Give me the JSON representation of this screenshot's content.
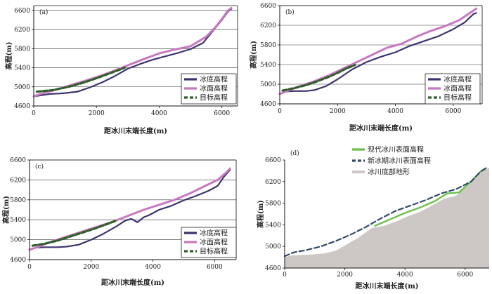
{
  "colors": {
    "bed": "#3d3470",
    "surface": "#c878c0",
    "target": "#2f5e2a",
    "modern": "#6cc04a",
    "lia": "#334a6a",
    "terrain": "#cdc8c6",
    "grid": "#333333"
  },
  "chart_data": [
    {
      "id": "a",
      "type": "line",
      "panel_label": "(a)",
      "xlabel": "距冰川末端长度(m)",
      "ylabel": "高程(m)",
      "xlim": [
        0,
        6500
      ],
      "ylim": [
        4600,
        6700
      ],
      "xticks": [
        0,
        2000,
        4000,
        6000
      ],
      "yticks": [
        4600,
        5000,
        5400,
        5800,
        6200,
        6600
      ],
      "grid": true,
      "legend_position": "bottom-right",
      "legend": [
        "冰底高程",
        "冰面高程",
        "目标高程"
      ],
      "series": [
        {
          "name": "冰底高程",
          "key": "bed",
          "x": [
            0,
            200,
            500,
            800,
            1000,
            1400,
            1800,
            2200,
            2600,
            3000,
            3400,
            3800,
            4200,
            4600,
            5000,
            5400,
            5800,
            6000,
            6200,
            6300
          ],
          "y": [
            4800,
            4820,
            4850,
            4860,
            4870,
            4900,
            4990,
            5100,
            5230,
            5380,
            5480,
            5570,
            5640,
            5710,
            5790,
            5920,
            6240,
            6400,
            6580,
            6630
          ]
        },
        {
          "name": "冰面高程",
          "key": "surface",
          "x": [
            0,
            300,
            600,
            1000,
            1500,
            2000,
            2500,
            3000,
            3500,
            4000,
            4500,
            5000,
            5500,
            5800,
            6000,
            6200,
            6300
          ],
          "y": [
            4800,
            4870,
            4920,
            5000,
            5100,
            5200,
            5320,
            5450,
            5580,
            5700,
            5780,
            5850,
            6050,
            6250,
            6420,
            6600,
            6650
          ]
        },
        {
          "name": "目标高程",
          "key": "target",
          "x": [
            100,
            600,
            1100,
            1600,
            2000,
            2500,
            2900
          ],
          "y": [
            4900,
            4930,
            5000,
            5090,
            5180,
            5300,
            5400
          ]
        }
      ]
    },
    {
      "id": "b",
      "type": "line",
      "panel_label": "(b)",
      "xlabel": "距冰川末端长度(m)",
      "ylabel": "高程(m)",
      "xlim": [
        0,
        7000
      ],
      "ylim": [
        4600,
        6600
      ],
      "xticks": [
        0,
        2000,
        4000,
        6000
      ],
      "yticks": [
        4600,
        5000,
        5400,
        5800,
        6200,
        6600
      ],
      "grid": true,
      "legend_position": "bottom-right",
      "legend": [
        "冰底高程",
        "冰面高程",
        "目标高程"
      ],
      "series": [
        {
          "name": "冰底高程",
          "key": "bed",
          "x": [
            0,
            200,
            500,
            900,
            1200,
            1600,
            2000,
            2500,
            3000,
            3500,
            4000,
            4500,
            5000,
            5500,
            6000,
            6400,
            6700,
            6800
          ],
          "y": [
            4800,
            4850,
            4860,
            4860,
            4880,
            4960,
            5100,
            5300,
            5450,
            5560,
            5650,
            5780,
            5880,
            5980,
            6120,
            6260,
            6430,
            6450
          ]
        },
        {
          "name": "冰面高程",
          "key": "surface",
          "x": [
            0,
            300,
            700,
            1200,
            1700,
            2200,
            2700,
            3200,
            3700,
            4200,
            4700,
            5200,
            5700,
            6200,
            6600,
            6800
          ],
          "y": [
            4800,
            4870,
            4960,
            5060,
            5180,
            5320,
            5460,
            5600,
            5740,
            5820,
            5960,
            6080,
            6180,
            6300,
            6460,
            6540
          ]
        },
        {
          "name": "目标高程",
          "key": "target",
          "x": [
            100,
            500,
            900,
            1300,
            1700,
            2000,
            2300,
            2600
          ],
          "y": [
            4870,
            4920,
            4980,
            5060,
            5150,
            5230,
            5320,
            5390
          ]
        }
      ]
    },
    {
      "id": "c",
      "type": "line",
      "panel_label": "(c)",
      "xlabel": "距冰川末端长度(m)",
      "ylabel": "高程(m)",
      "xlim": [
        0,
        6700
      ],
      "ylim": [
        4600,
        6600
      ],
      "xticks": [
        0,
        2000,
        4000,
        6000
      ],
      "yticks": [
        4600,
        5000,
        5400,
        5800,
        6200,
        6600
      ],
      "grid": true,
      "legend_position": "bottom-right",
      "legend": [
        "冰底高程",
        "冰面高程",
        "目标高程"
      ],
      "series": [
        {
          "name": "冰底高程",
          "key": "bed",
          "x": [
            0,
            200,
            500,
            900,
            1200,
            1600,
            2000,
            2400,
            2800,
            3100,
            3300,
            3500,
            3700,
            3900,
            4200,
            4600,
            5000,
            5400,
            5800,
            6100,
            6300,
            6500
          ],
          "y": [
            4800,
            4840,
            4850,
            4850,
            4860,
            4900,
            5000,
            5120,
            5260,
            5380,
            5420,
            5350,
            5450,
            5500,
            5600,
            5680,
            5790,
            5880,
            5980,
            6080,
            6260,
            6400
          ]
        },
        {
          "name": "冰面高程",
          "key": "surface",
          "x": [
            0,
            300,
            700,
            1200,
            1700,
            2200,
            2700,
            3200,
            3700,
            4200,
            4700,
            5200,
            5700,
            6100,
            6400,
            6500
          ],
          "y": [
            4800,
            4860,
            4960,
            5060,
            5160,
            5260,
            5360,
            5480,
            5600,
            5700,
            5800,
            5930,
            6080,
            6200,
            6360,
            6430
          ]
        },
        {
          "name": "目标高程",
          "key": "target",
          "x": [
            100,
            500,
            900,
            1300,
            1700,
            2100,
            2500,
            2800
          ],
          "y": [
            4880,
            4920,
            4980,
            5060,
            5140,
            5220,
            5310,
            5380
          ]
        }
      ]
    },
    {
      "id": "d",
      "type": "area",
      "panel_label": "(d)",
      "xlabel": "距冰川末端长度(m)",
      "ylabel": "高程(m)",
      "xlim": [
        0,
        6800
      ],
      "ylim": [
        4600,
        6600
      ],
      "xticks": [
        0,
        2000,
        4000,
        6000
      ],
      "yticks": [
        4600,
        5000,
        5400,
        5800,
        6200,
        6600
      ],
      "grid": false,
      "legend_position": "top-left",
      "legend": [
        "现代冰川表面高程",
        "新冰期冰川表面高程",
        "冰川底部地形"
      ],
      "series": [
        {
          "name": "现代冰川表面高程",
          "key": "modern",
          "x": [
            3000,
            3500,
            4000,
            4500,
            5000,
            5400,
            5800,
            6200,
            6500,
            6700
          ],
          "y": [
            5380,
            5500,
            5620,
            5720,
            5840,
            5980,
            6000,
            6200,
            6380,
            6450
          ]
        },
        {
          "name": "新冰期冰川表面高程",
          "key": "lia",
          "x": [
            0,
            300,
            700,
            1200,
            1700,
            2200,
            2700,
            3200,
            3700,
            4200,
            4700,
            5200,
            5700,
            6200,
            6500,
            6700
          ],
          "y": [
            4820,
            4890,
            4930,
            5000,
            5100,
            5220,
            5360,
            5520,
            5660,
            5760,
            5860,
            5980,
            6060,
            6200,
            6380,
            6450
          ]
        },
        {
          "name": "冰川底部地形",
          "key": "terrain",
          "x": [
            0,
            200,
            500,
            900,
            1300,
            1700,
            2100,
            2500,
            2900,
            3300,
            3700,
            4100,
            4500,
            4900,
            5300,
            5700,
            6100,
            6500,
            6800
          ],
          "y": [
            4800,
            4830,
            4840,
            4850,
            4870,
            4920,
            5050,
            5180,
            5340,
            5380,
            5460,
            5560,
            5640,
            5760,
            5880,
            5940,
            6120,
            6380,
            6450
          ]
        }
      ]
    }
  ]
}
